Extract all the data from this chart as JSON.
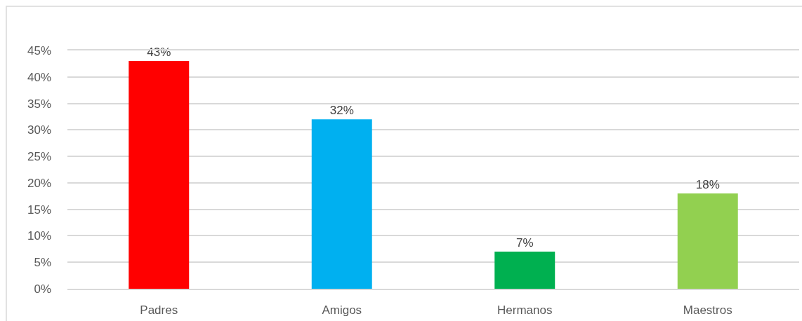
{
  "chart_data": {
    "type": "bar",
    "categories": [
      "Padres",
      "Amigos",
      "Hermanos",
      "Maestros"
    ],
    "values": [
      43,
      32,
      7,
      18
    ],
    "colors": [
      "#ff0000",
      "#00b0f0",
      "#00b050",
      "#92d050"
    ],
    "value_labels": [
      "43%",
      "32%",
      "7%",
      "18%"
    ],
    "ylim": [
      0,
      45
    ],
    "yticks": [
      {
        "value": 0,
        "label": "0%"
      },
      {
        "value": 5,
        "label": "5%"
      },
      {
        "value": 10,
        "label": "10%"
      },
      {
        "value": 15,
        "label": "15%"
      },
      {
        "value": 20,
        "label": "20%"
      },
      {
        "value": 25,
        "label": "25%"
      },
      {
        "value": 30,
        "label": "30%"
      },
      {
        "value": 35,
        "label": "35%"
      },
      {
        "value": 40,
        "label": "40%"
      },
      {
        "value": 45,
        "label": "45%"
      }
    ],
    "grid": "y"
  }
}
